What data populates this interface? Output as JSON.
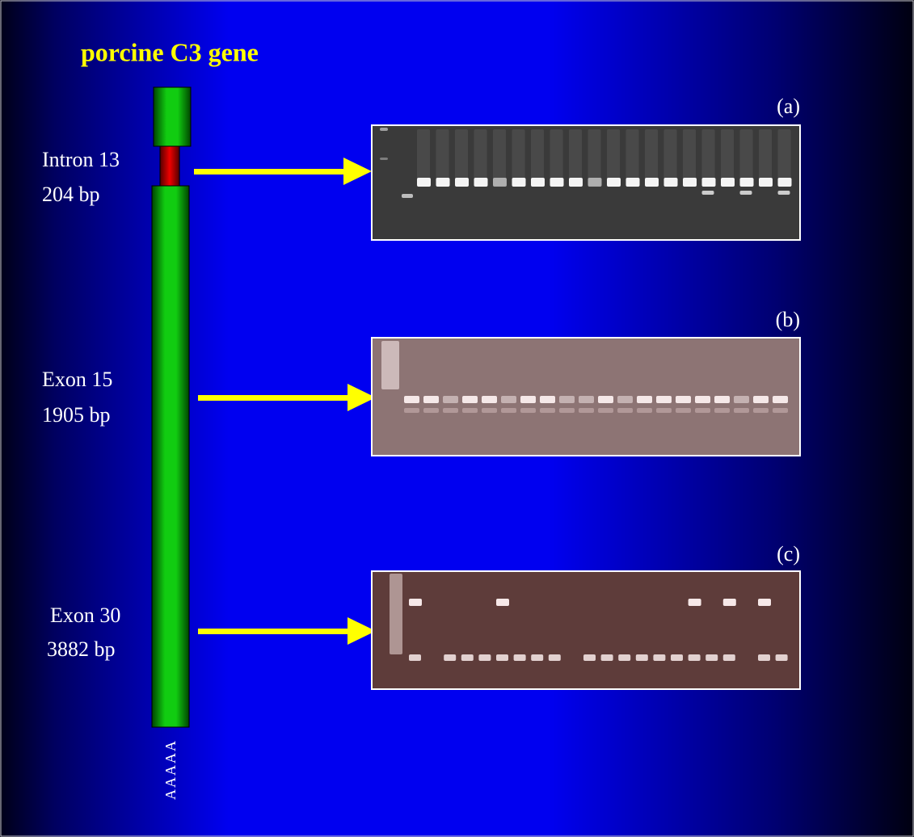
{
  "title": "porcine C3 gene",
  "regions": [
    {
      "name": "Intron 13",
      "size": "204 bp"
    },
    {
      "name": "Exon 15",
      "size": "1905 bp"
    },
    {
      "name": "Exon 30",
      "size": "3882 bp"
    }
  ],
  "panels": [
    "(a)",
    "(b)",
    "(c)"
  ],
  "poly_a": "AAAAA"
}
